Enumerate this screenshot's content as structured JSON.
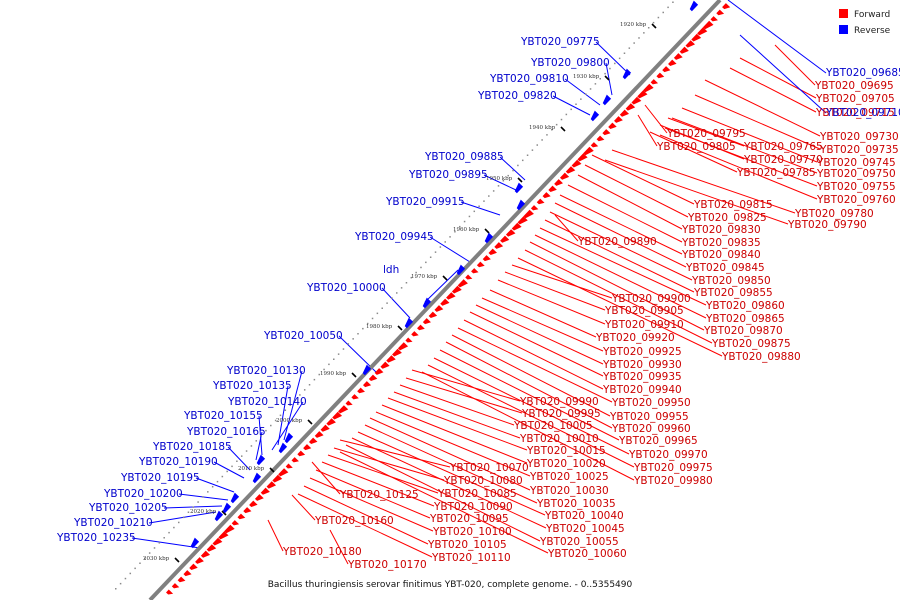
{
  "caption": "Bacillus thuringiensis serovar finitimus YBT-020, complete genome. - 0..5355490",
  "legend": [
    {
      "label": "Forward",
      "color": "#ff0000"
    },
    {
      "label": "Reverse",
      "color": "#0000ff"
    }
  ],
  "ticks": [
    "1920 kbp",
    "1930 kbp",
    "1940 kbp",
    "1950 kbp",
    "1960 kbp",
    "1970 kbp",
    "1980 kbp",
    "1990 kbp",
    "2000 kbp",
    "2010 kbp",
    "2020 kbp",
    "2030 kbp"
  ],
  "forward_labels": [
    "YBT020_09695",
    "YBT020_09705",
    "YBT020_09715",
    "YBT020_09730",
    "YBT020_09735",
    "YBT020_09745",
    "YBT020_09750",
    "YBT020_09755",
    "YBT020_09760",
    "YBT020_09765",
    "YBT020_09770",
    "YBT020_09785",
    "YBT020_09780",
    "YBT020_09790",
    "YBT020_09795",
    "YBT020_09805",
    "YBT020_09815",
    "YBT020_09825",
    "YBT020_09830",
    "YBT020_09835",
    "YBT020_09840",
    "YBT020_09845",
    "YBT020_09850",
    "YBT020_09855",
    "YBT020_09860",
    "YBT020_09865",
    "YBT020_09870",
    "YBT020_09875",
    "YBT020_09880",
    "YBT020_09890",
    "YBT020_09900",
    "YBT020_09905",
    "YBT020_09910",
    "YBT020_09920",
    "YBT020_09925",
    "YBT020_09930",
    "YBT020_09935",
    "YBT020_09940",
    "YBT020_09950",
    "YBT020_09955",
    "YBT020_09960",
    "YBT020_09965",
    "YBT020_09970",
    "YBT020_09975",
    "YBT020_09980",
    "YBT020_09990",
    "YBT020_09995",
    "YBT020_10005",
    "YBT020_10010",
    "YBT020_10015",
    "YBT020_10020",
    "YBT020_10025",
    "YBT020_10030",
    "YBT020_10035",
    "YBT020_10040",
    "YBT020_10045",
    "YBT020_10055",
    "YBT020_10060",
    "YBT020_10070",
    "YBT020_10080",
    "YBT020_10085",
    "YBT020_10090",
    "YBT020_10095",
    "YBT020_10100",
    "YBT020_10105",
    "YBT020_10110",
    "YBT020_10125",
    "YBT020_10160",
    "YBT020_10180",
    "YBT020_10170"
  ],
  "reverse_labels": [
    "YBT020_09685",
    "YBT020_09710",
    "YBT020_09775",
    "YBT020_09800",
    "YBT020_09810",
    "YBT020_09820",
    "YBT020_09885",
    "YBT020_09895",
    "YBT020_09915",
    "YBT020_09945",
    "ldh",
    "YBT020_10000",
    "YBT020_10050",
    "YBT020_10130",
    "YBT020_10135",
    "YBT020_10140",
    "YBT020_10155",
    "YBT020_10165",
    "YBT020_10185",
    "YBT020_10190",
    "YBT020_10195",
    "YBT020_10200",
    "YBT020_10205",
    "YBT020_10210",
    "YBT020_10235"
  ]
}
